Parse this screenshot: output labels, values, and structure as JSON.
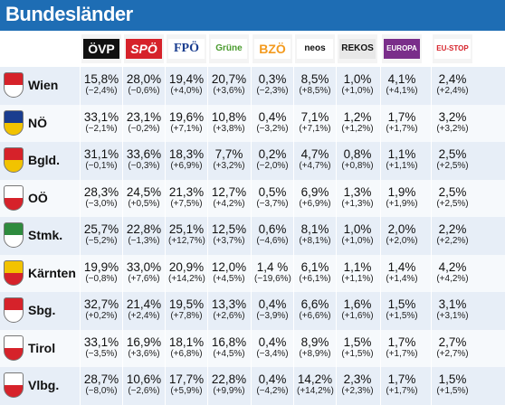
{
  "title": "Bundesländer",
  "parties": [
    {
      "id": "oevp",
      "label": "ÖVP",
      "bg": "#111111",
      "fg": "#ffffff"
    },
    {
      "id": "spoe",
      "label": "SPÖ",
      "bg": "#d6222a",
      "fg": "#ffffff"
    },
    {
      "id": "fpoe",
      "label": "FPÖ",
      "bg": "#ffffff",
      "fg": "#1a3d8f"
    },
    {
      "id": "gruene",
      "label": "Grüne",
      "bg": "#ffffff",
      "fg": "#4a9b2e"
    },
    {
      "id": "bzoe",
      "label": "BZÖ",
      "bg": "#ffffff",
      "fg": "#f39a1e"
    },
    {
      "id": "neos",
      "label": "neos",
      "bg": "#ffffff",
      "fg": "#111111"
    },
    {
      "id": "rekos",
      "label": "REKOS",
      "bg": "#e8e8e8",
      "fg": "#111111"
    },
    {
      "id": "europa",
      "label": "EUROPA",
      "bg": "#7a2e8a",
      "fg": "#ffffff"
    },
    {
      "id": "eustop",
      "label": "EU-STOP",
      "bg": "#ffffff",
      "fg": "#d6222a"
    }
  ],
  "rows": [
    {
      "name": "Wien",
      "values": [
        "15,8%",
        "28,0%",
        "19,4%",
        "20,7%",
        "0,3%",
        "8,5%",
        "1,0%",
        "4,1%",
        "2,4%"
      ],
      "changes": [
        "(−2,4%)",
        "(−0,6%)",
        "(+4,0%)",
        "(+3,6%)",
        "(−2,3%)",
        "(+8,5%)",
        "(+1,0%)",
        "(+4,1%)",
        "(+2,4%)"
      ]
    },
    {
      "name": "NÖ",
      "values": [
        "33,1%",
        "23,1%",
        "19,6%",
        "10,8%",
        "0,4%",
        "7,1%",
        "1,2%",
        "1,7%",
        "3,2%"
      ],
      "changes": [
        "(−2,1%)",
        "(−0,2%)",
        "(+7,1%)",
        "(+3,8%)",
        "(−3,2%)",
        "(+7,1%)",
        "(+1,2%)",
        "(+1,7%)",
        "(+3,2%)"
      ]
    },
    {
      "name": "Bgld.",
      "values": [
        "31,1%",
        "33,6%",
        "18,3%",
        "7,7%",
        "0,2%",
        "4,7%",
        "0,8%",
        "1,1%",
        "2,5%"
      ],
      "changes": [
        "(−0,1%)",
        "(−0,3%)",
        "(+6,9%)",
        "(+3,2%)",
        "(−2,0%)",
        "(+4,7%)",
        "(+0,8%)",
        "(+1,1%)",
        "(+2,5%)"
      ]
    },
    {
      "name": "OÖ",
      "values": [
        "28,3%",
        "24,5%",
        "21,3%",
        "12,7%",
        "0,5%",
        "6,9%",
        "1,3%",
        "1,9%",
        "2,5%"
      ],
      "changes": [
        "(−3,0%)",
        "(+0,5%)",
        "(+7,5%)",
        "(+4,2%)",
        "(−3,7%)",
        "(+6,9%)",
        "(+1,3%)",
        "(+1,9%)",
        "(+2,5%)"
      ]
    },
    {
      "name": "Stmk.",
      "values": [
        "25,7%",
        "22,8%",
        "25,1%",
        "12,5%",
        "0,6%",
        "8,1%",
        "1,0%",
        "2,0%",
        "2,2%"
      ],
      "changes": [
        "(−5,2%)",
        "(−1,3%)",
        "(+12,7%)",
        "(+3,7%)",
        "(−4,6%)",
        "(+8,1%)",
        "(+1,0%)",
        "(+2,0%)",
        "(+2,2%)"
      ]
    },
    {
      "name": "Kärnten",
      "values": [
        "19,9%",
        "33,0%",
        "20,9%",
        "12,0%",
        "1,4 %",
        "6,1%",
        "1,1%",
        "1,4%",
        "4,2%"
      ],
      "changes": [
        "(−0,8%)",
        "(+7,6%)",
        "(+14,2%)",
        "(+4,5%)",
        "(−19,6%)",
        "(+6,1%)",
        "(+1,1%)",
        "(+1,4%)",
        "(+4,2%)"
      ]
    },
    {
      "name": "Sbg.",
      "values": [
        "32,7%",
        "21,4%",
        "19,5%",
        "13,3%",
        "0,4%",
        "6,6%",
        "1,6%",
        "1,5%",
        "3,1%"
      ],
      "changes": [
        "(+0,2%)",
        "(+2,4%)",
        "(+7,8%)",
        "(+2,6%)",
        "(−3,9%)",
        "(+6,6%)",
        "(+1,6%)",
        "(+1,5%)",
        "(+3,1%)"
      ]
    },
    {
      "name": "Tirol",
      "values": [
        "33,1%",
        "16,9%",
        "18,1%",
        "16,8%",
        "0,4%",
        "8,9%",
        "1,5%",
        "1,7%",
        "2,7%"
      ],
      "changes": [
        "(−3,5%)",
        "(+3,6%)",
        "(+6,8%)",
        "(+4,5%)",
        "(−3,4%)",
        "(+8,9%)",
        "(+1,5%)",
        "(+1,7%)",
        "(+2,7%)"
      ]
    },
    {
      "name": "Vlbg.",
      "values": [
        "28,7%",
        "10,6%",
        "17,7%",
        "22,8%",
        "0,4%",
        "14,2%",
        "2,3%",
        "1,7%",
        "1,5%"
      ],
      "changes": [
        "(−8,0%)",
        "(−2,6%)",
        "(+5,9%)",
        "(+9,9%)",
        "(−4,2%)",
        "(+14,2%)",
        "(+2,3%)",
        "(+1,7%)",
        "(+1,5%)"
      ]
    }
  ],
  "crest_colors": [
    [
      "#d6222a",
      "#ffffff"
    ],
    [
      "#1a3d8f",
      "#f2c300"
    ],
    [
      "#d6222a",
      "#f2c300"
    ],
    [
      "#ffffff",
      "#d6222a"
    ],
    [
      "#2e8b3e",
      "#ffffff"
    ],
    [
      "#f2c300",
      "#d6222a"
    ],
    [
      "#d6222a",
      "#ffffff"
    ],
    [
      "#ffffff",
      "#d6222a"
    ],
    [
      "#ffffff",
      "#d6222a"
    ]
  ]
}
